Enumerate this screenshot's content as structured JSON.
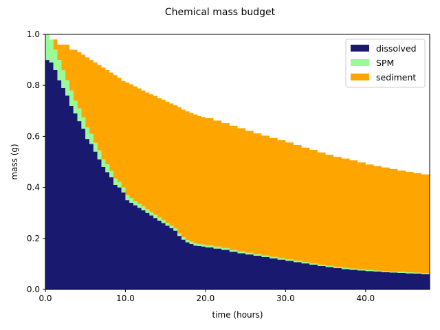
{
  "chart_data": {
    "type": "area",
    "title": "Chemical mass budget",
    "xlabel": "time (hours)",
    "ylabel": "mass (g)",
    "xlim": [
      0,
      48
    ],
    "ylim": [
      0,
      1.0
    ],
    "xticks": [
      0,
      10,
      20,
      30,
      40
    ],
    "xtick_labels": [
      "0.0",
      "10.0",
      "20.0",
      "30.0",
      "40.0"
    ],
    "yticks": [
      0.0,
      0.2,
      0.4,
      0.6,
      0.8,
      1.0
    ],
    "ytick_labels": [
      "0.0",
      "0.2",
      "0.4",
      "0.6",
      "0.8",
      "1.0"
    ],
    "grid": false,
    "legend_position": "top-right",
    "stacked": true,
    "step": true,
    "x": [
      0,
      0.5,
      1,
      1.5,
      2,
      2.5,
      3,
      3.5,
      4,
      4.5,
      5,
      5.5,
      6,
      6.5,
      7,
      7.5,
      8,
      8.5,
      9,
      9.5,
      10,
      10.5,
      11,
      11.5,
      12,
      12.5,
      13,
      13.5,
      14,
      14.5,
      15,
      15.5,
      16,
      16.5,
      17,
      17.5,
      18,
      18.5,
      19,
      19.5,
      20,
      21,
      22,
      23,
      24,
      25,
      26,
      27,
      28,
      29,
      30,
      31,
      32,
      33,
      34,
      35,
      36,
      37,
      38,
      39,
      40,
      41,
      42,
      43,
      44,
      45,
      46,
      47,
      48
    ],
    "series": [
      {
        "name": "dissolved",
        "color": "#191970",
        "values": [
          0.9,
          0.89,
          0.86,
          0.82,
          0.79,
          0.76,
          0.72,
          0.69,
          0.66,
          0.63,
          0.59,
          0.57,
          0.54,
          0.51,
          0.48,
          0.46,
          0.44,
          0.41,
          0.4,
          0.38,
          0.35,
          0.34,
          0.33,
          0.32,
          0.31,
          0.3,
          0.29,
          0.28,
          0.27,
          0.26,
          0.25,
          0.24,
          0.23,
          0.21,
          0.195,
          0.185,
          0.178,
          0.172,
          0.17,
          0.168,
          0.165,
          0.16,
          0.155,
          0.148,
          0.142,
          0.137,
          0.132,
          0.127,
          0.122,
          0.117,
          0.112,
          0.107,
          0.102,
          0.097,
          0.092,
          0.088,
          0.084,
          0.08,
          0.077,
          0.074,
          0.072,
          0.07,
          0.068,
          0.066,
          0.065,
          0.063,
          0.062,
          0.06,
          0.058
        ]
      },
      {
        "name": "SPM",
        "color": "#98fb98",
        "values": [
          0.1,
          0.09,
          0.08,
          0.08,
          0.07,
          0.06,
          0.06,
          0.05,
          0.05,
          0.045,
          0.045,
          0.04,
          0.035,
          0.035,
          0.03,
          0.03,
          0.025,
          0.025,
          0.022,
          0.02,
          0.02,
          0.018,
          0.016,
          0.016,
          0.015,
          0.014,
          0.013,
          0.013,
          0.012,
          0.012,
          0.011,
          0.011,
          0.01,
          0.01,
          0.01,
          0.009,
          0.009,
          0.009,
          0.008,
          0.008,
          0.008,
          0.008,
          0.007,
          0.007,
          0.007,
          0.007,
          0.006,
          0.006,
          0.006,
          0.006,
          0.006,
          0.006,
          0.005,
          0.005,
          0.005,
          0.005,
          0.005,
          0.005,
          0.005,
          0.005,
          0.004,
          0.004,
          0.004,
          0.004,
          0.004,
          0.004,
          0.004,
          0.004,
          0.004
        ]
      },
      {
        "name": "sediment",
        "color": "#ffa500",
        "values": [
          0.0,
          0.0,
          0.04,
          0.06,
          0.1,
          0.14,
          0.16,
          0.2,
          0.22,
          0.245,
          0.275,
          0.29,
          0.315,
          0.335,
          0.36,
          0.37,
          0.385,
          0.405,
          0.408,
          0.417,
          0.441,
          0.446,
          0.45,
          0.452,
          0.455,
          0.458,
          0.462,
          0.466,
          0.468,
          0.472,
          0.475,
          0.478,
          0.482,
          0.494,
          0.5,
          0.504,
          0.505,
          0.505,
          0.502,
          0.5,
          0.499,
          0.494,
          0.49,
          0.487,
          0.483,
          0.478,
          0.474,
          0.47,
          0.466,
          0.462,
          0.458,
          0.453,
          0.449,
          0.445,
          0.44,
          0.435,
          0.431,
          0.428,
          0.424,
          0.419,
          0.414,
          0.41,
          0.406,
          0.402,
          0.397,
          0.394,
          0.39,
          0.387,
          0.382
        ]
      }
    ]
  }
}
